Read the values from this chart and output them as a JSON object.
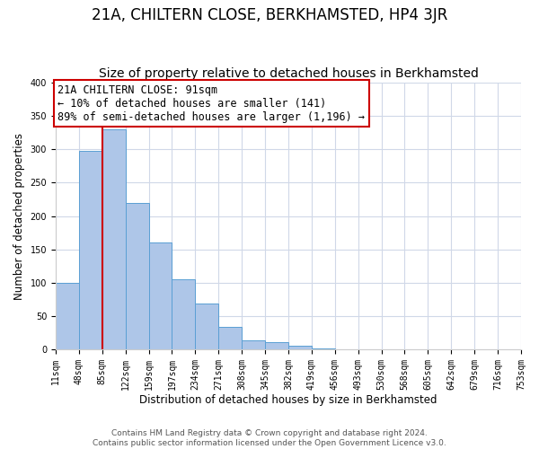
{
  "title": "21A, CHILTERN CLOSE, BERKHAMSTED, HP4 3JR",
  "subtitle": "Size of property relative to detached houses in Berkhamsted",
  "xlabel": "Distribution of detached houses by size in Berkhamsted",
  "ylabel": "Number of detached properties",
  "bin_labels": [
    "11sqm",
    "48sqm",
    "85sqm",
    "122sqm",
    "159sqm",
    "197sqm",
    "234sqm",
    "271sqm",
    "308sqm",
    "345sqm",
    "382sqm",
    "419sqm",
    "456sqm",
    "493sqm",
    "530sqm",
    "568sqm",
    "605sqm",
    "642sqm",
    "679sqm",
    "716sqm",
    "753sqm"
  ],
  "bar_values": [
    100,
    298,
    330,
    220,
    160,
    105,
    68,
    33,
    14,
    11,
    5,
    1,
    0,
    0,
    0,
    0,
    0,
    0,
    0,
    0
  ],
  "bar_color": "#aec6e8",
  "bar_edge_color": "#5a9fd4",
  "red_line_color": "#cc0000",
  "annotation_title": "21A CHILTERN CLOSE: 91sqm",
  "annotation_line1": "← 10% of detached houses are smaller (141)",
  "annotation_line2": "89% of semi-detached houses are larger (1,196) →",
  "annotation_box_color": "#ffffff",
  "annotation_box_edge": "#cc0000",
  "ylim": [
    0,
    400
  ],
  "yticks": [
    0,
    50,
    100,
    150,
    200,
    250,
    300,
    350,
    400
  ],
  "footer1": "Contains HM Land Registry data © Crown copyright and database right 2024.",
  "footer2": "Contains public sector information licensed under the Open Government Licence v3.0.",
  "bg_color": "#ffffff",
  "grid_color": "#d0d8e8",
  "title_fontsize": 12,
  "subtitle_fontsize": 10,
  "axis_label_fontsize": 8.5,
  "tick_fontsize": 7,
  "footer_fontsize": 6.5,
  "annotation_fontsize": 8.5
}
